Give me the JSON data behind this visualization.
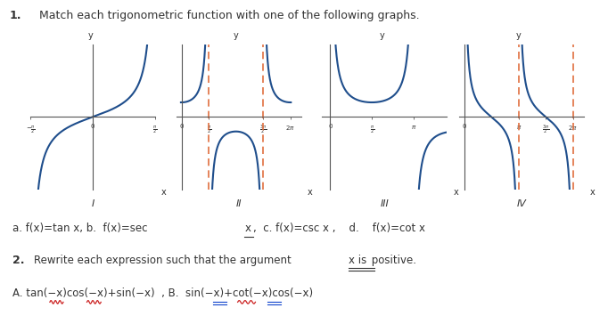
{
  "title_number": "1.",
  "title_text": "Match each trigonometric function with one of the following graphs.",
  "bg_color": "#ffffff",
  "graph_labels": [
    "I",
    "II",
    "III",
    "IV"
  ],
  "curve_color": "#1f4e8c",
  "asymptote_color": "#e07040",
  "axis_color": "#555555",
  "text_color": "#333333",
  "red_color": "#cc2222",
  "blue_color": "#1144cc"
}
